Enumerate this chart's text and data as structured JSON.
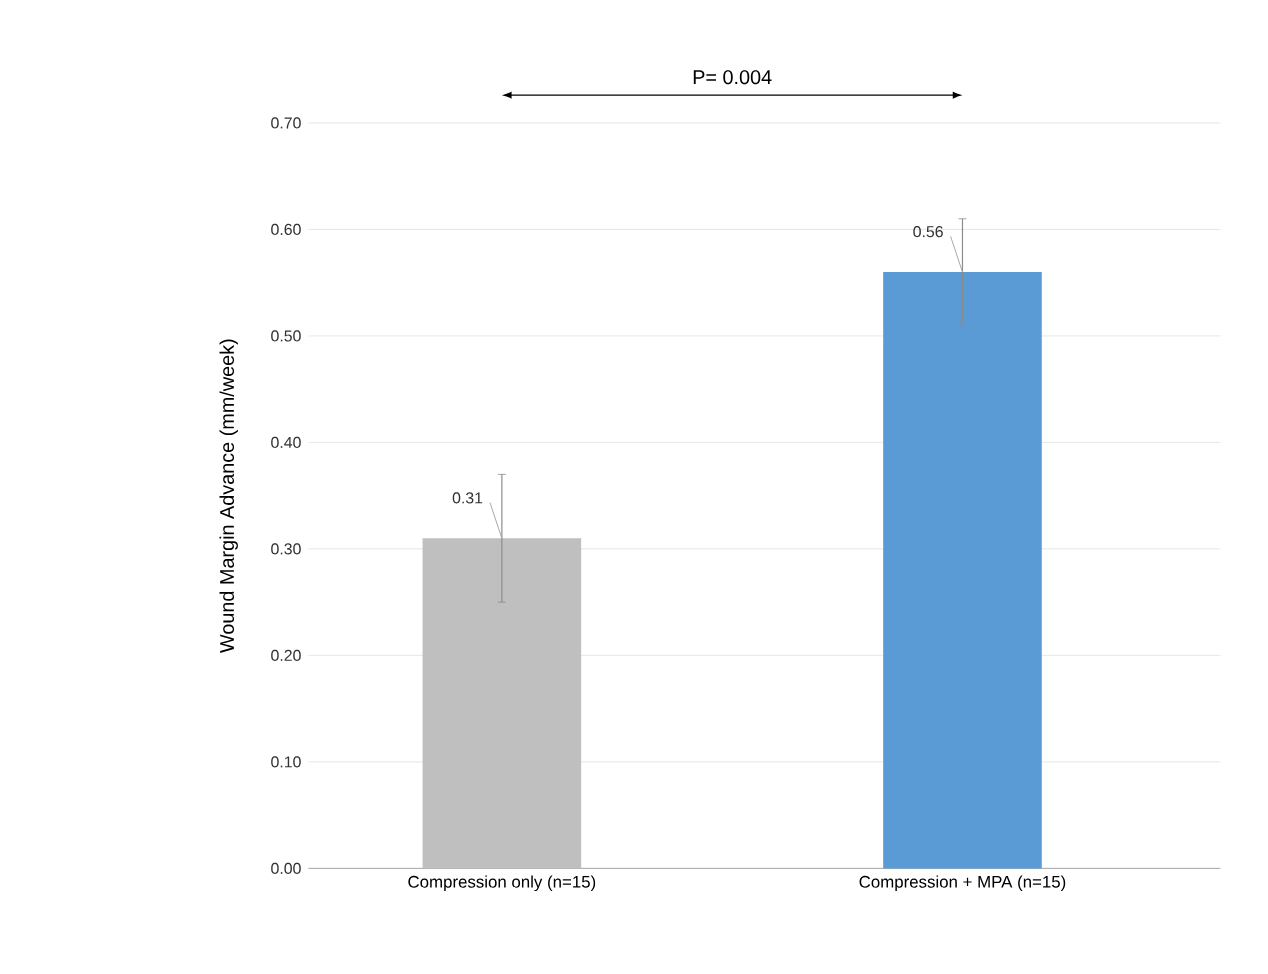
{
  "chart_data": {
    "type": "bar",
    "ylabel": "Wound Margin Advance (mm/week)",
    "categories": [
      "Compression only (n=15)",
      "Compression + MPA (n=15)"
    ],
    "values": [
      0.31,
      0.56
    ],
    "colors": [
      "#bfbfbf",
      "#5b9bd5"
    ],
    "errors": [
      0.06,
      0.05
    ],
    "value_labels": [
      "0.31",
      "0.56"
    ],
    "ylim": [
      0,
      0.7
    ],
    "yticks": [
      {
        "value": 0,
        "label": "0.00"
      },
      {
        "value": 0.1,
        "label": "0.10"
      },
      {
        "value": 0.2,
        "label": "0.20"
      },
      {
        "value": 0.3,
        "label": "0.30"
      },
      {
        "value": 0.4,
        "label": "0.40"
      },
      {
        "value": 0.5,
        "label": "0.50"
      },
      {
        "value": 0.6,
        "label": "0.60"
      },
      {
        "value": 0.7,
        "label": "0.70"
      }
    ],
    "grid": "y",
    "annotations": [
      "P= 0.004"
    ]
  }
}
